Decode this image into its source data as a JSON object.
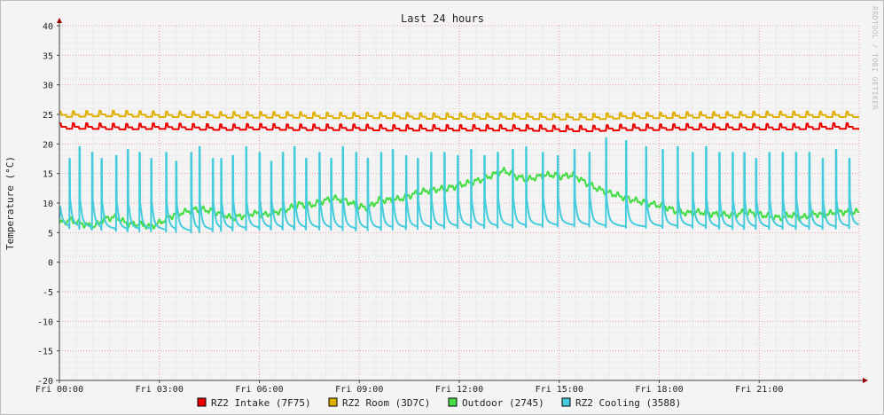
{
  "chart_data": {
    "type": "line",
    "title": "Last 24 hours",
    "ylabel": "Temperature (°C)",
    "watermark": "RRDTOOL / TOBI OETIKER",
    "ylim": [
      -20,
      40
    ],
    "yticks": [
      40,
      35,
      30,
      25,
      20,
      15,
      10,
      5,
      0,
      -5,
      -10,
      -15,
      -20
    ],
    "xlim_hours": [
      0,
      24
    ],
    "xticks": [
      {
        "h": 0,
        "label": "Fri 00:00"
      },
      {
        "h": 3,
        "label": "Fri 03:00"
      },
      {
        "h": 6,
        "label": "Fri 06:00"
      },
      {
        "h": 9,
        "label": "Fri 09:00"
      },
      {
        "h": 12,
        "label": "Fri 12:00"
      },
      {
        "h": 15,
        "label": "Fri 15:00"
      },
      {
        "h": 18,
        "label": "Fri 18:00"
      },
      {
        "h": 21,
        "label": "Fri 21:00"
      }
    ],
    "grid": true,
    "legend_position": "bottom",
    "series": [
      {
        "name": "RZ2 Intake (7F75)",
        "color": "#ee0000",
        "oscillation_period_h": 0.4,
        "values": [
          22.8,
          22.8,
          22.7,
          22.8,
          22.7,
          22.6,
          22.7,
          22.6,
          22.6,
          22.6,
          22.5,
          22.5,
          22.5,
          22.5,
          22.5,
          22.4,
          22.4,
          22.6,
          22.6,
          22.7,
          22.7,
          22.7,
          22.7,
          22.8,
          22.8
        ]
      },
      {
        "name": "RZ2 Room (3D7C)",
        "color": "#e0b000",
        "oscillation_period_h": 0.4,
        "values": [
          24.8,
          24.9,
          24.9,
          24.8,
          24.8,
          24.7,
          24.7,
          24.7,
          24.6,
          24.6,
          24.6,
          24.5,
          24.5,
          24.5,
          24.5,
          24.4,
          24.4,
          24.6,
          24.6,
          24.7,
          24.7,
          24.8,
          24.8,
          24.8,
          24.8
        ]
      },
      {
        "name": "Outdoor (2745)",
        "color": "#44dd44",
        "values": [
          6.6,
          7.1,
          6.5,
          6.0,
          7.4,
          7.6,
          6.4,
          6.4,
          6.0,
          6.9,
          8.0,
          8.5,
          9.0,
          8.8,
          8.3,
          7.5,
          7.8,
          8.3,
          8.0,
          8.5,
          9.0,
          9.8,
          9.6,
          10.3,
          10.8,
          10.5,
          9.5,
          9.2,
          10.5,
          10.5,
          10.8,
          11.5,
          12.0,
          12.3,
          12.5,
          13.0,
          13.5,
          14.0,
          14.8,
          15.5,
          14.5,
          14.0,
          14.5,
          14.8,
          14.5,
          14.8,
          13.5,
          12.5,
          11.8,
          11.2,
          10.6,
          10.2,
          9.8,
          9.4,
          8.6,
          8.3,
          8.5,
          8.2,
          8.0,
          8.0,
          8.5,
          8.2,
          7.8,
          7.5,
          8.0,
          7.5,
          8.2,
          8.0,
          8.5,
          8.5,
          8.5
        ]
      },
      {
        "name": "RZ2 Cooling (3588)",
        "color": "#44ccdd",
        "spikes": [
          {
            "h": 0.3,
            "peak": 17.5
          },
          {
            "h": 0.6,
            "peak": 19.5
          },
          {
            "h": 0.98,
            "peak": 18.5
          },
          {
            "h": 1.26,
            "peak": 17.5
          },
          {
            "h": 1.7,
            "peak": 18.0
          },
          {
            "h": 2.05,
            "peak": 19.0
          },
          {
            "h": 2.4,
            "peak": 18.5
          },
          {
            "h": 2.75,
            "peak": 17.5
          },
          {
            "h": 3.2,
            "peak": 18.5
          },
          {
            "h": 3.5,
            "peak": 17.0
          },
          {
            "h": 3.95,
            "peak": 18.5
          },
          {
            "h": 4.2,
            "peak": 19.5
          },
          {
            "h": 4.6,
            "peak": 17.5
          },
          {
            "h": 4.85,
            "peak": 17.5
          },
          {
            "h": 5.2,
            "peak": 18.0
          },
          {
            "h": 5.6,
            "peak": 19.5
          },
          {
            "h": 6.0,
            "peak": 18.5
          },
          {
            "h": 6.35,
            "peak": 17.0
          },
          {
            "h": 6.7,
            "peak": 18.5
          },
          {
            "h": 7.05,
            "peak": 19.5
          },
          {
            "h": 7.4,
            "peak": 17.5
          },
          {
            "h": 7.8,
            "peak": 18.5
          },
          {
            "h": 8.15,
            "peak": 17.5
          },
          {
            "h": 8.5,
            "peak": 19.5
          },
          {
            "h": 8.9,
            "peak": 18.5
          },
          {
            "h": 9.25,
            "peak": 17.5
          },
          {
            "h": 9.65,
            "peak": 18.5
          },
          {
            "h": 10.0,
            "peak": 19.0
          },
          {
            "h": 10.4,
            "peak": 18.0
          },
          {
            "h": 10.75,
            "peak": 17.5
          },
          {
            "h": 11.15,
            "peak": 18.5
          },
          {
            "h": 11.55,
            "peak": 18.5
          },
          {
            "h": 11.95,
            "peak": 18.0
          },
          {
            "h": 12.35,
            "peak": 19.0
          },
          {
            "h": 12.75,
            "peak": 18.0
          },
          {
            "h": 13.15,
            "peak": 18.5
          },
          {
            "h": 13.6,
            "peak": 19.0
          },
          {
            "h": 14.0,
            "peak": 19.5
          },
          {
            "h": 14.5,
            "peak": 18.5
          },
          {
            "h": 14.95,
            "peak": 18.0
          },
          {
            "h": 15.45,
            "peak": 19.0
          },
          {
            "h": 15.9,
            "peak": 18.5
          },
          {
            "h": 16.4,
            "peak": 21.0
          },
          {
            "h": 17.0,
            "peak": 20.5
          },
          {
            "h": 17.6,
            "peak": 19.5
          },
          {
            "h": 18.1,
            "peak": 19.0
          },
          {
            "h": 18.55,
            "peak": 19.5
          },
          {
            "h": 19.0,
            "peak": 18.5
          },
          {
            "h": 19.4,
            "peak": 19.5
          },
          {
            "h": 19.8,
            "peak": 18.5
          },
          {
            "h": 20.2,
            "peak": 18.5
          },
          {
            "h": 20.55,
            "peak": 18.5
          },
          {
            "h": 20.9,
            "peak": 17.5
          },
          {
            "h": 21.3,
            "peak": 18.5
          },
          {
            "h": 21.7,
            "peak": 18.5
          },
          {
            "h": 22.1,
            "peak": 18.5
          },
          {
            "h": 22.5,
            "peak": 18.5
          },
          {
            "h": 22.9,
            "peak": 17.5
          },
          {
            "h": 23.3,
            "peak": 19.0
          },
          {
            "h": 23.7,
            "peak": 17.5
          }
        ],
        "baseline": [
          5.8,
          5.5,
          5.2,
          5.2,
          5.0,
          5.3,
          5.5,
          5.5,
          5.5,
          5.3,
          5.5,
          5.6,
          5.8,
          5.8,
          5.9,
          6.0,
          6.0,
          5.8,
          5.8,
          5.8,
          5.6,
          5.6,
          5.6,
          5.6,
          5.8
        ]
      }
    ]
  }
}
